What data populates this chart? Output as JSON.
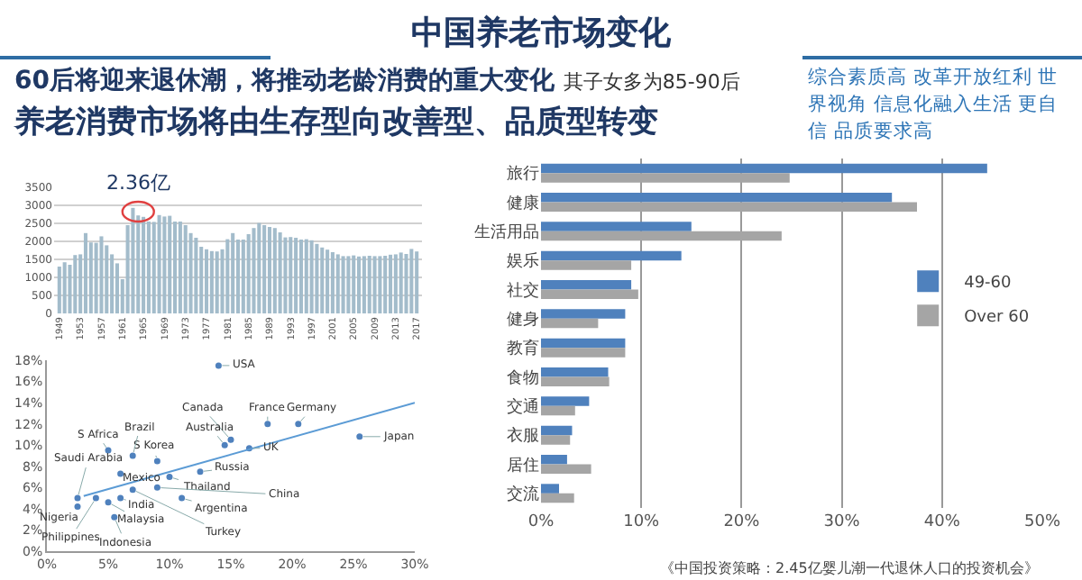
{
  "chart_data": [
    {
      "type": "other",
      "title": "中国养老市场变化",
      "annotations": [
        "60后将迎来退休潮，将推动老龄消费的重大变化",
        "其子女多为85-90后",
        "养老消费市场将由生存型向改善型、品质型转变",
        "综合素质高 改革开放红利 世界视角 信息化融入生活 更自信 品质要求高"
      ]
    },
    {
      "type": "bar",
      "x": [
        1949,
        1950,
        1951,
        1952,
        1953,
        1954,
        1955,
        1956,
        1957,
        1958,
        1959,
        1960,
        1961,
        1962,
        1963,
        1964,
        1965,
        1966,
        1967,
        1968,
        1969,
        1970,
        1971,
        1972,
        1973,
        1974,
        1975,
        1976,
        1977,
        1978,
        1979,
        1980,
        1981,
        1982,
        1983,
        1984,
        1985,
        1986,
        1987,
        1988,
        1989,
        1990,
        1991,
        1992,
        1993,
        1994,
        1995,
        1996,
        1997,
        1998,
        1999,
        2000,
        2001,
        2002,
        2003,
        2004,
        2005,
        2006,
        2007,
        2008,
        2009,
        2010,
        2011,
        2012,
        2013,
        2014,
        2015,
        2016,
        2017
      ],
      "values": [
        1300,
        1420,
        1350,
        1620,
        1640,
        2230,
        1970,
        1960,
        2140,
        1890,
        1640,
        1390,
        950,
        2450,
        2930,
        2720,
        2680,
        2550,
        2540,
        2730,
        2690,
        2710,
        2550,
        2550,
        2450,
        2230,
        2100,
        1850,
        1780,
        1730,
        1720,
        1780,
        2060,
        2230,
        2050,
        2050,
        2200,
        2370,
        2510,
        2450,
        2400,
        2370,
        2250,
        2110,
        2120,
        2100,
        2050,
        2060,
        2030,
        1930,
        1830,
        1770,
        1700,
        1640,
        1590,
        1590,
        1610,
        1580,
        1590,
        1600,
        1590,
        1590,
        1600,
        1630,
        1640,
        1690,
        1650,
        1790,
        1720
      ],
      "color": "#a3bccb",
      "xlim": [
        1948,
        2018
      ],
      "xticks": [
        1949,
        1953,
        1957,
        1961,
        1965,
        1969,
        1973,
        1977,
        1981,
        1985,
        1989,
        1993,
        1997,
        2001,
        2005,
        2009,
        2013,
        2017
      ],
      "ylim": [
        0,
        3500
      ],
      "yticks": [
        0,
        500,
        1000,
        1500,
        2000,
        2500,
        3000,
        3500
      ],
      "grid": "y",
      "annotations": [
        {
          "text": "2.36亿",
          "x": 1964,
          "y": 2850
        }
      ]
    },
    {
      "type": "scatter",
      "marker": "circle",
      "legend": false,
      "grid": false,
      "xlim": [
        0,
        30
      ],
      "xticks": [
        {
          "value": 0,
          "label": "0%"
        },
        {
          "value": 5,
          "label": "5%"
        },
        {
          "value": 10,
          "label": "10%"
        },
        {
          "value": 15,
          "label": "15%"
        },
        {
          "value": 20,
          "label": "20%"
        },
        {
          "value": 25,
          "label": "25%"
        },
        {
          "value": 30,
          "label": "30%"
        }
      ],
      "ylim": [
        0,
        18
      ],
      "yticks": [
        {
          "value": 0,
          "label": "0%"
        },
        {
          "value": 2,
          "label": "2%"
        },
        {
          "value": 4,
          "label": "4%"
        },
        {
          "value": 6,
          "label": "6%"
        },
        {
          "value": 8,
          "label": "8%"
        },
        {
          "value": 10,
          "label": "10%"
        },
        {
          "value": 12,
          "label": "12%"
        },
        {
          "value": 14,
          "label": "14%"
        },
        {
          "value": 16,
          "label": "16%"
        },
        {
          "value": 18,
          "label": "18%"
        }
      ],
      "series": [
        {
          "name": "USA",
          "color": "#4f81bd",
          "x": [
            14
          ],
          "values": [
            17.5
          ]
        },
        {
          "name": "France",
          "color": "#4f81bd",
          "x": [
            18
          ],
          "values": [
            12
          ]
        },
        {
          "name": "Canada",
          "color": "#4f81bd",
          "x": [
            15
          ],
          "values": [
            10.5
          ]
        },
        {
          "name": "Germany",
          "color": "#4f81bd",
          "x": [
            20.5
          ],
          "values": [
            12
          ]
        },
        {
          "name": "Japan",
          "color": "#4f81bd",
          "x": [
            25.5
          ],
          "values": [
            10.8
          ]
        },
        {
          "name": "UK",
          "color": "#4f81bd",
          "x": [
            16.5
          ],
          "values": [
            9.7
          ]
        },
        {
          "name": "Australia",
          "color": "#4f81bd",
          "x": [
            14.5
          ],
          "values": [
            10
          ]
        },
        {
          "name": "Russia",
          "color": "#4f81bd",
          "x": [
            12.5
          ],
          "values": [
            7.5
          ]
        },
        {
          "name": "S Korea",
          "color": "#4f81bd",
          "x": [
            9
          ],
          "values": [
            8.5
          ]
        },
        {
          "name": "Brazil",
          "color": "#4f81bd",
          "x": [
            7
          ],
          "values": [
            9
          ]
        },
        {
          "name": "S Africa",
          "color": "#4f81bd",
          "x": [
            5
          ],
          "values": [
            9.5
          ]
        },
        {
          "name": "Saudi Arabia",
          "color": "#4f81bd",
          "x": [
            2.5
          ],
          "values": [
            5
          ]
        },
        {
          "name": "Mexico",
          "color": "#4f81bd",
          "x": [
            6
          ],
          "values": [
            7.3
          ]
        },
        {
          "name": "Thailand",
          "color": "#4f81bd",
          "x": [
            10
          ],
          "values": [
            7
          ]
        },
        {
          "name": "China",
          "color": "#4f81bd",
          "x": [
            9
          ],
          "values": [
            6
          ]
        },
        {
          "name": "Argentina",
          "color": "#4f81bd",
          "x": [
            11
          ],
          "values": [
            5
          ]
        },
        {
          "name": "India",
          "color": "#4f81bd",
          "x": [
            6
          ],
          "values": [
            5
          ]
        },
        {
          "name": "Malaysia",
          "color": "#4f81bd",
          "x": [
            5
          ],
          "values": [
            4.6
          ]
        },
        {
          "name": "Indonesia",
          "color": "#4f81bd",
          "x": [
            5.5
          ],
          "values": [
            3.2
          ]
        },
        {
          "name": "Nigeria",
          "color": "#4f81bd",
          "x": [
            2.5
          ],
          "values": [
            4.2
          ]
        },
        {
          "name": "Philippines",
          "color": "#4f81bd",
          "x": [
            4
          ],
          "values": [
            5
          ]
        },
        {
          "name": "Turkey",
          "color": "#4f81bd",
          "x": [
            7
          ],
          "values": [
            5.8
          ]
        },
        {
          "type": "line",
          "marker": "none",
          "color": "#5b9bd5",
          "x": [
            3,
            30
          ],
          "values": [
            5.2,
            14
          ]
        }
      ]
    },
    {
      "type": "bar",
      "orientation": "horizontal",
      "legend": "right",
      "grid": "x",
      "categories": [
        "旅行",
        "健康",
        "生活用品",
        "娱乐",
        "社交",
        "健身",
        "教育",
        "食物",
        "交通",
        "衣服",
        "居住",
        "交流"
      ],
      "xlim": [
        0,
        50
      ],
      "xticks": [
        {
          "value": 0,
          "label": "0%"
        },
        {
          "value": 10,
          "label": "10%"
        },
        {
          "value": 20,
          "label": "20%"
        },
        {
          "value": 30,
          "label": "30%"
        },
        {
          "value": 40,
          "label": "40%"
        },
        {
          "value": 50,
          "label": "50%"
        }
      ],
      "series": [
        {
          "name": "49-60",
          "color": "#4f81bd",
          "values": [
            44.5,
            35,
            15,
            14,
            9,
            8.4,
            8.4,
            6.7,
            4.8,
            3.1,
            2.6,
            1.8
          ]
        },
        {
          "name": "Over 60",
          "color": "#a5a5a5",
          "values": [
            24.8,
            37.5,
            24,
            9,
            9.7,
            5.7,
            8.4,
            6.8,
            3.4,
            2.9,
            5,
            3.3
          ]
        }
      ],
      "annotations": [
        "《中国投资策略：2.45亿婴儿潮一代退休人口的投资机会》"
      ]
    }
  ]
}
